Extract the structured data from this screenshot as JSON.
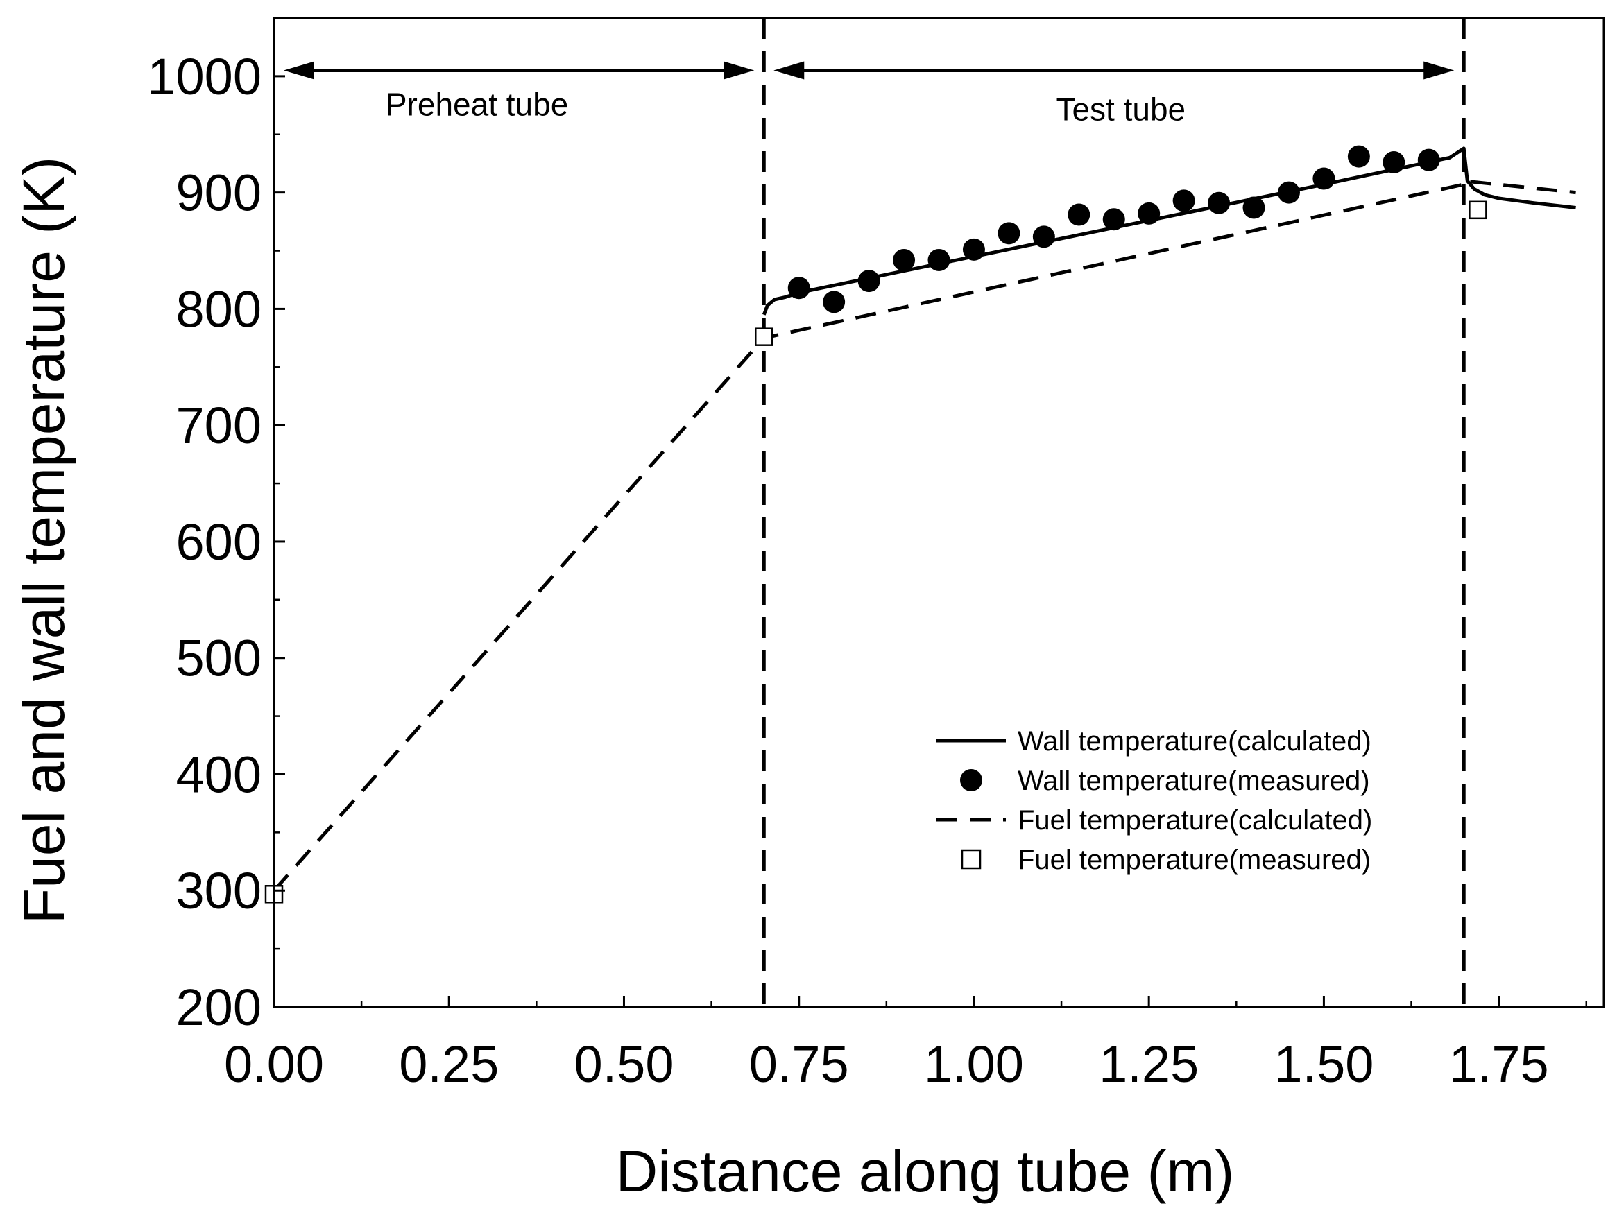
{
  "chart_data": {
    "type": "line",
    "title": "",
    "xlabel": "Distance along tube (m)",
    "ylabel": "Fuel and wall temperature (K)",
    "xlim": [
      0.0,
      1.9
    ],
    "ylim": [
      200,
      1050
    ],
    "xticks": [
      0.0,
      0.25,
      0.5,
      0.75,
      1.0,
      1.25,
      1.5,
      1.75
    ],
    "xtick_labels": [
      "0.00",
      "0.25",
      "0.50",
      "0.75",
      "1.00",
      "1.25",
      "1.50",
      "1.75"
    ],
    "yticks": [
      200,
      300,
      400,
      500,
      600,
      700,
      800,
      900,
      1000
    ],
    "ytick_labels": [
      "200",
      "300",
      "400",
      "500",
      "600",
      "700",
      "800",
      "900",
      "1000"
    ],
    "grid": false,
    "legend_position": "bottom-right",
    "regions": [
      {
        "label": "Preheat tube",
        "x_start": 0.0,
        "x_end": 0.7,
        "y": 1005
      },
      {
        "label": "Test tube",
        "x_start": 0.7,
        "x_end": 1.7,
        "y": 1005
      }
    ],
    "vertical_lines": [
      0.7,
      1.7
    ],
    "series": [
      {
        "name": "Wall temperature(calculated)",
        "style": "solid-line",
        "x": [
          0.7,
          0.705,
          0.715,
          0.73,
          0.75,
          1.0,
          1.25,
          1.5,
          1.68,
          1.7,
          1.705,
          1.715,
          1.73,
          1.75,
          1.8,
          1.86
        ],
        "y": [
          795,
          803,
          808,
          810,
          814,
          845,
          876,
          907,
          930,
          938,
          910,
          903,
          898,
          895,
          891,
          887
        ]
      },
      {
        "name": "Wall temperature(measured)",
        "style": "filled-circle",
        "x": [
          0.75,
          0.8,
          0.85,
          0.9,
          0.95,
          1.0,
          1.05,
          1.1,
          1.15,
          1.2,
          1.25,
          1.3,
          1.35,
          1.4,
          1.45,
          1.5,
          1.55,
          1.6,
          1.65
        ],
        "y": [
          818,
          806,
          824,
          842,
          842,
          851,
          865,
          862,
          881,
          877,
          882,
          893,
          891,
          887,
          900,
          912,
          931,
          926,
          928
        ]
      },
      {
        "name": "Fuel temperature(calculated)",
        "style": "dashed-line",
        "x": [
          0.0,
          0.7,
          0.7,
          1.7,
          1.7,
          1.86
        ],
        "y": [
          300,
          775,
          775,
          907,
          910,
          900
        ]
      },
      {
        "name": "Fuel temperature(measured)",
        "style": "open-square",
        "x": [
          0.0,
          0.7,
          1.72
        ],
        "y": [
          297,
          776,
          885
        ]
      }
    ]
  }
}
